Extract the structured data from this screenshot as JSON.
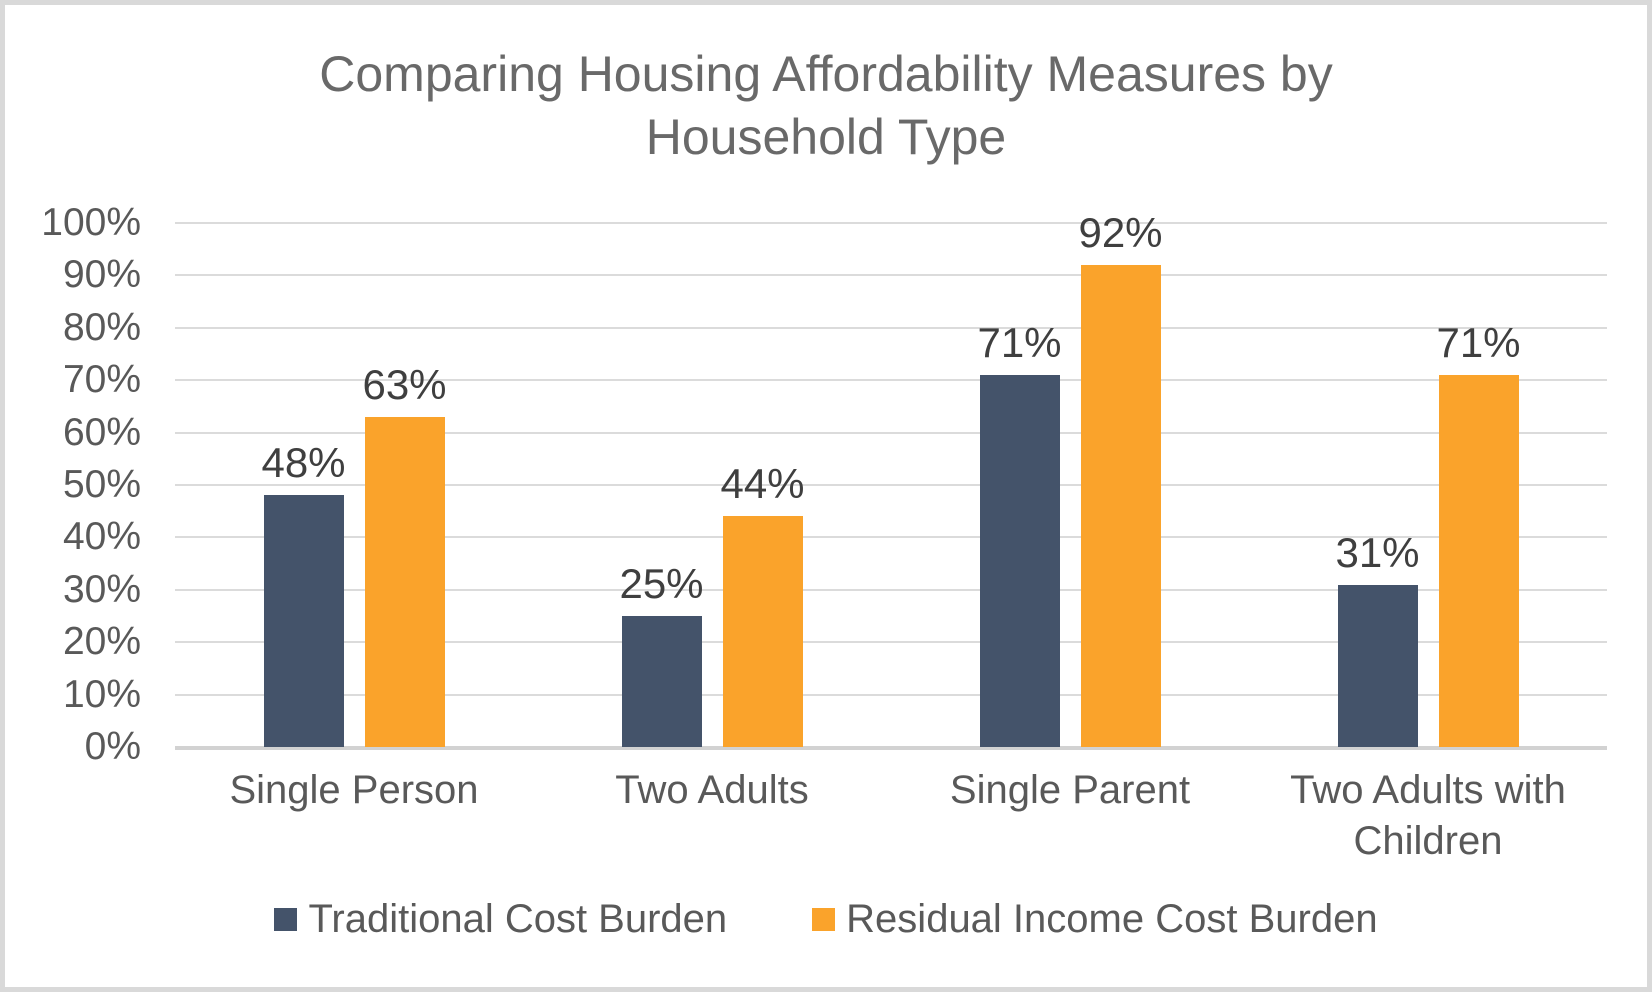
{
  "frame": {
    "background_color": "#ffffff",
    "border_color": "#d9d9d9"
  },
  "text_colors": {
    "title": "#696969",
    "axis_labels": "#595959",
    "data_labels": "#3f3f3f"
  },
  "chart_data": {
    "type": "bar",
    "title": "Comparing Housing Affordability Measures by Household Type",
    "xlabel": "",
    "ylabel": "",
    "categories": [
      "Single Person",
      "Two Adults",
      "Single Parent",
      "Two Adults with Children"
    ],
    "series": [
      {
        "name": "Traditional Cost Burden",
        "color": "#44536A",
        "values": [
          48,
          25,
          71,
          31
        ],
        "labels": [
          "48%",
          "25%",
          "71%",
          "31%"
        ]
      },
      {
        "name": "Residual Income Cost Burden",
        "color": "#FAA32B",
        "values": [
          63,
          44,
          92,
          71
        ],
        "labels": [
          "63%",
          "44%",
          "92%",
          "71%"
        ]
      }
    ],
    "ylim": [
      0,
      100
    ],
    "yticks": [
      "100%",
      "90%",
      "80%",
      "70%",
      "60%",
      "50%",
      "40%",
      "30%",
      "20%",
      "10%",
      "0%"
    ],
    "grid": true,
    "gridline_color": "#dbdbdb",
    "axis_line_color": "#d2d2d2",
    "legend_position": "bottom",
    "data_labels": true
  }
}
